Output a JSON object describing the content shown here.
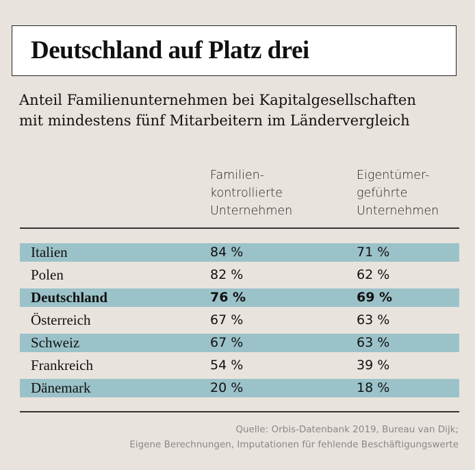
{
  "chart_data": {
    "type": "table",
    "title": "Deutschland auf Platz drei",
    "subtitle": [
      "Anteil Familienunternehmen bei Kapitalgesellschaften",
      "mit mindestens fünf Mitarbeitern im Ländervergleich"
    ],
    "columns": [
      [
        "Familien-",
        "kontrollierte",
        "Unternehmen"
      ],
      [
        "Eigentümer-",
        "geführte",
        "Unternehmen"
      ]
    ],
    "rows": [
      {
        "country": "Italien",
        "fam": "84 %",
        "eig": "71 %",
        "highlight": false
      },
      {
        "country": "Polen",
        "fam": "82 %",
        "eig": "62 %",
        "highlight": false
      },
      {
        "country": "Deutschland",
        "fam": "76 %",
        "eig": "69 %",
        "highlight": true
      },
      {
        "country": "Österreich",
        "fam": "67 %",
        "eig": "63 %",
        "highlight": false
      },
      {
        "country": "Schweiz",
        "fam": "67 %",
        "eig": "63 %",
        "highlight": false
      },
      {
        "country": "Frankreich",
        "fam": "54 %",
        "eig": "39 %",
        "highlight": false
      },
      {
        "country": "Dänemark",
        "fam": "20 %",
        "eig": "18 %",
        "highlight": false
      }
    ],
    "source": [
      "Quelle: Orbis-Datenbank 2019, Bureau van Dijk;",
      "Eigene Berechnungen, Imputationen für fehlende Beschäftigungswerte"
    ],
    "colors": {
      "background": "#e9e3dd",
      "band": "#9bc2c9"
    }
  }
}
